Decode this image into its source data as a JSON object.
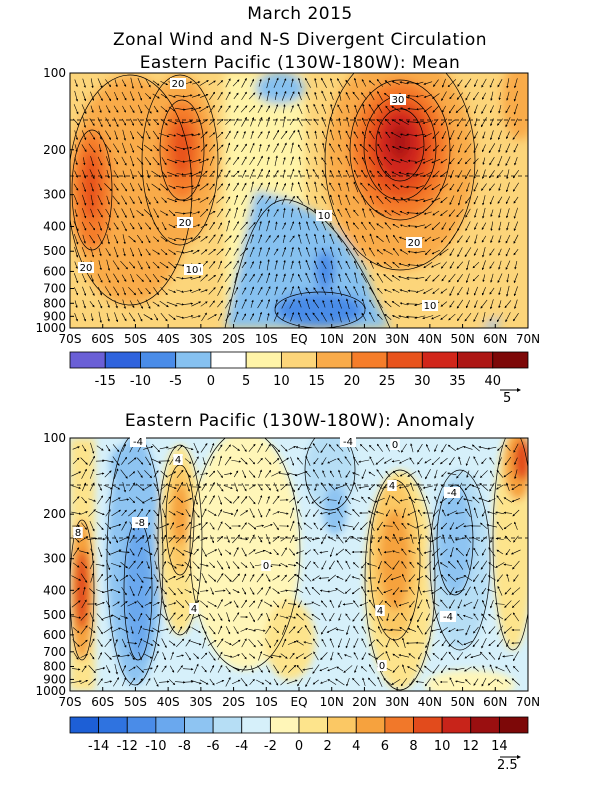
{
  "page": {
    "title": "March 2015",
    "subtitle": "Zonal Wind and N-S Divergent Circulation"
  },
  "chart_data": [
    {
      "type": "heatmap",
      "title": "Eastern Pacific (130W-180W): Mean",
      "x_tick_labels": [
        "70S",
        "60S",
        "50S",
        "40S",
        "30S",
        "20S",
        "10S",
        "EQ",
        "10N",
        "20N",
        "30N",
        "40N",
        "50N",
        "60N",
        "70N"
      ],
      "x_range": [
        -70,
        70
      ],
      "y_tick_labels": [
        "100",
        "200",
        "300",
        "400",
        "500",
        "600",
        "700",
        "800",
        "900",
        "1000"
      ],
      "y_scale": "log",
      "y_range": [
        1000,
        100
      ],
      "colorbar": {
        "levels": [
          -15,
          -10,
          -5,
          0,
          5,
          10,
          15,
          20,
          25,
          30,
          35,
          40
        ],
        "colors": [
          "#6a5fd6",
          "#2f63dd",
          "#4a8ce8",
          "#86c1f0",
          "#ffffff",
          "#fff4a8",
          "#fcd57a",
          "#f9ab4a",
          "#f57d2a",
          "#e8531c",
          "#d1261a",
          "#ad1614",
          "#7d0808"
        ],
        "tick_labels": [
          "-15",
          "-10",
          "-5",
          "0",
          "5",
          "10",
          "15",
          "20",
          "25",
          "30",
          "35",
          "40"
        ]
      },
      "contour_labels": [
        "20",
        "20",
        "20",
        "20",
        "10",
        "30",
        "20",
        "10",
        "10"
      ],
      "vector_reference": "5",
      "vector_reference_color": "#000000"
    },
    {
      "type": "heatmap",
      "title": "Eastern Pacific (130W-180W): Anomaly",
      "x_tick_labels": [
        "70S",
        "60S",
        "50S",
        "40S",
        "30S",
        "20S",
        "10S",
        "EQ",
        "10N",
        "20N",
        "30N",
        "40N",
        "50N",
        "60N",
        "70N"
      ],
      "x_range": [
        -70,
        70
      ],
      "y_tick_labels": [
        "100",
        "200",
        "300",
        "400",
        "500",
        "600",
        "700",
        "800",
        "900",
        "1000"
      ],
      "y_scale": "log",
      "y_range": [
        1000,
        100
      ],
      "colorbar": {
        "levels": [
          -14,
          -12,
          -10,
          -8,
          -6,
          -4,
          -2,
          0,
          2,
          4,
          6,
          8,
          10,
          12,
          14
        ],
        "colors": [
          "#1d5fd6",
          "#2f73e0",
          "#4a8ce8",
          "#6aa8ee",
          "#8ec4f2",
          "#b6def5",
          "#d6f0fa",
          "#fff6b8",
          "#fde48c",
          "#fbc864",
          "#f6a23e",
          "#f1782a",
          "#e24b1c",
          "#c8241a",
          "#9a0f10",
          "#7d0808"
        ],
        "tick_labels": [
          "-14",
          "-12",
          "-10",
          "-8",
          "-6",
          "-4",
          "-2",
          "0",
          "2",
          "4",
          "6",
          "8",
          "10",
          "12",
          "14"
        ]
      },
      "contour_labels": [
        "-4",
        "-4",
        "0",
        "4",
        "4",
        "8",
        "-8",
        "4",
        "-4",
        "-4",
        "0",
        "4",
        "0"
      ],
      "vector_reference": "2.5",
      "vector_reference_color": "#000000"
    }
  ]
}
